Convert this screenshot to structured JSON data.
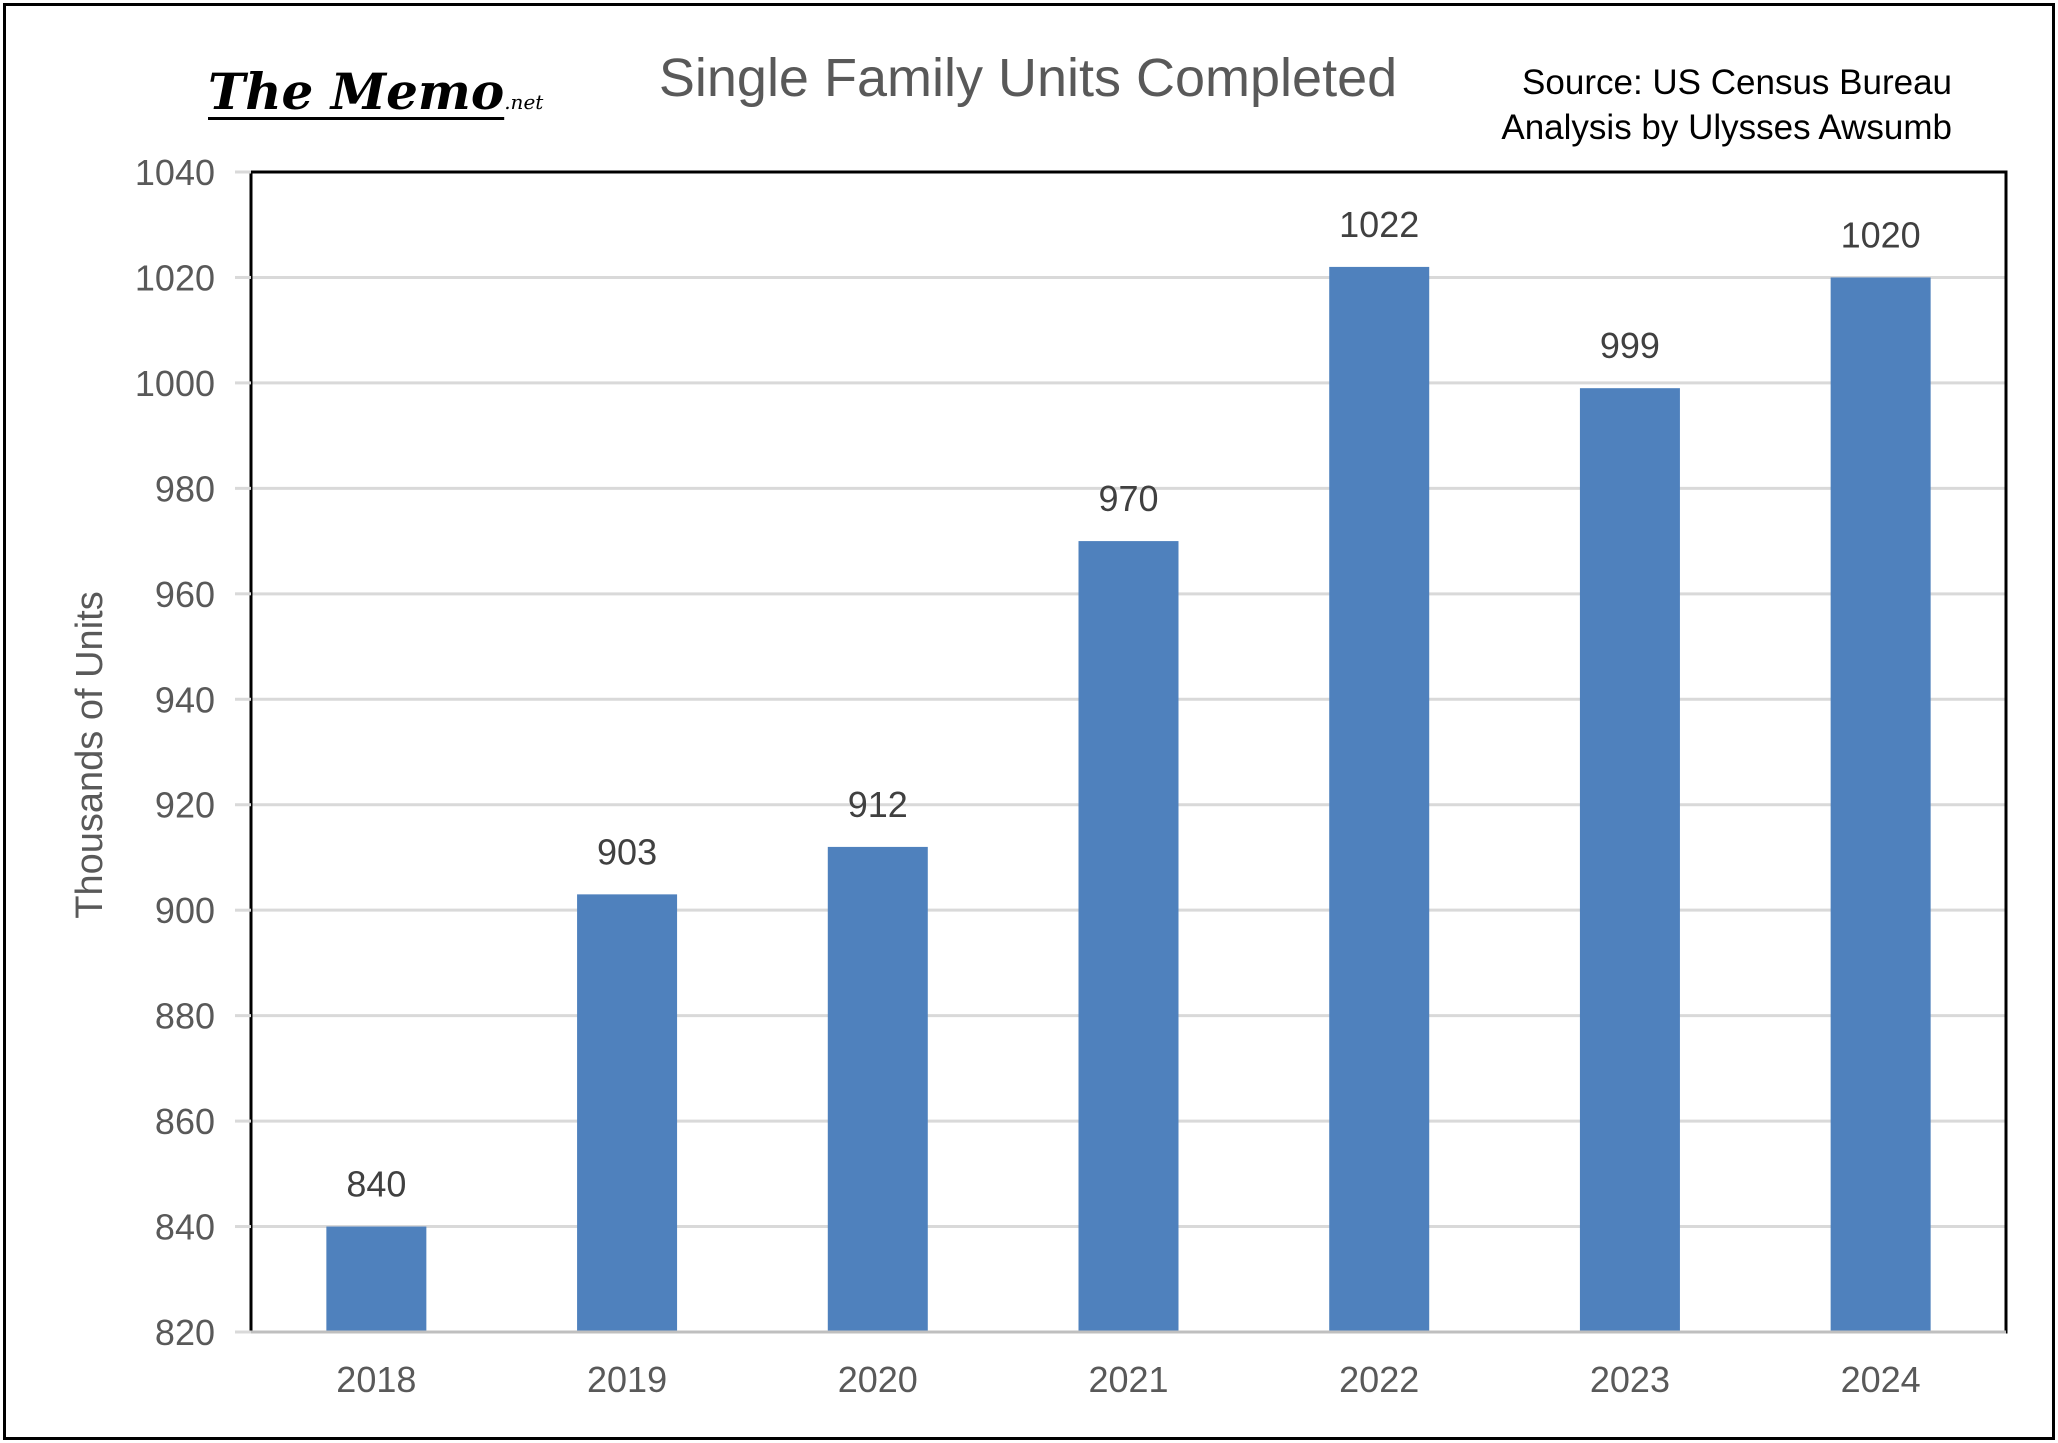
{
  "logo": {
    "main": "The Memo",
    "suffix": ".net"
  },
  "source": {
    "line1": "Source: US Census Bureau",
    "line2": "Analysis by Ulysses Awsumb"
  },
  "colors": {
    "bar": "#4f81bd",
    "grid": "#d9d9d9",
    "text": "#595959",
    "border": "#000000"
  },
  "chart_data": {
    "type": "bar",
    "title": "Single Family Units Completed",
    "xlabel": "",
    "ylabel": "Thousands of Units",
    "categories": [
      "2018",
      "2019",
      "2020",
      "2021",
      "2022",
      "2023",
      "2024"
    ],
    "values": [
      840,
      903,
      912,
      970,
      1022,
      999,
      1020
    ],
    "data_labels": [
      "840",
      "903",
      "912",
      "970",
      "1022",
      "999",
      "1020"
    ],
    "ylim": [
      820,
      1040
    ],
    "yticks": [
      820,
      840,
      860,
      880,
      900,
      920,
      940,
      960,
      980,
      1000,
      1020,
      1040
    ],
    "grid": true,
    "legend": "none"
  }
}
